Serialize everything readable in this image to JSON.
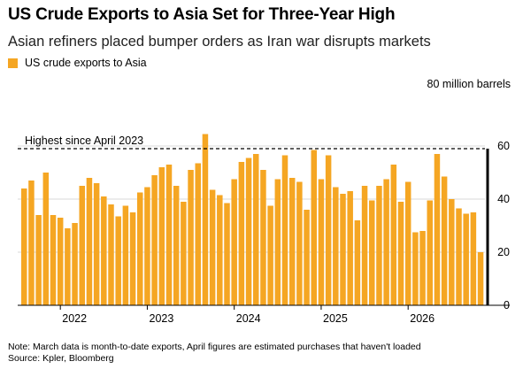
{
  "header": {
    "title": "US Crude Exports to Asia Set for Three-Year High",
    "subtitle": "Asian refiners placed bumper orders as Iran war disrupts markets"
  },
  "footer": {
    "note": "Note: March data is month-to-date exports, April figures are estimated purchases that haven't loaded",
    "source": "Source: Kpler, Bloomberg"
  },
  "colors": {
    "bar": "#f5a623",
    "reference_line": "#000000",
    "axis": "#000000",
    "grid": "#d9d9d9"
  },
  "chart_data": {
    "type": "bar",
    "unit_label": "80 million barrels",
    "series": [
      {
        "name": "US crude exports to Asia",
        "values": [
          44.0,
          47.0,
          34.0,
          50.0,
          34.0,
          33.0,
          29.0,
          31.0,
          45.0,
          48.0,
          46.0,
          41.0,
          38.0,
          33.5,
          37.5,
          35.0,
          42.5,
          44.5,
          49.0,
          52.0,
          53.0,
          45.0,
          39.0,
          51.0,
          53.5,
          64.5,
          43.5,
          41.5,
          38.5,
          47.5,
          54.0,
          55.5,
          57.0,
          51.0,
          37.5,
          47.5,
          56.5,
          48.0,
          46.5,
          36.0,
          58.5,
          47.5,
          56.5,
          44.5,
          42.0,
          43.0,
          32.0,
          45.0,
          39.5,
          45.0,
          47.5,
          53.0,
          39.0,
          46.5,
          27.5,
          28.0,
          39.5,
          57.0,
          48.5,
          40.0,
          36.5,
          34.5,
          35.0,
          20.0
        ]
      }
    ],
    "x_start": "2021-08",
    "x_ticks": [
      "2022",
      "2023",
      "2024",
      "2025",
      "2026"
    ],
    "y_ticks": [
      0,
      20,
      40,
      60
    ],
    "ylim": [
      0,
      80
    ],
    "reference_line": {
      "value": 59,
      "label": "Highest since April 2023"
    },
    "grid": true,
    "legend_position": "top-left"
  }
}
